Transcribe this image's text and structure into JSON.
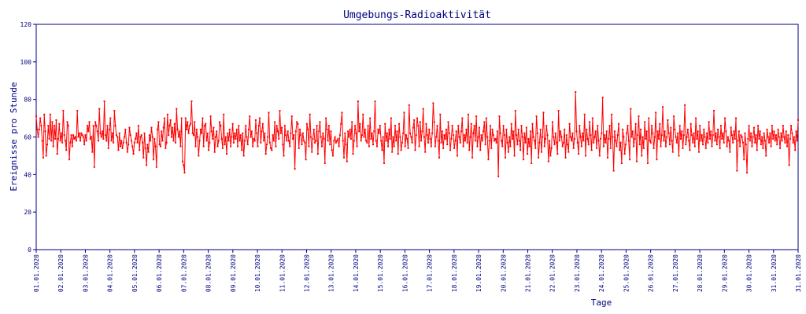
{
  "chart_data": {
    "type": "line",
    "title": "Umgebungs-Radioaktivität",
    "xlabel": "Tage",
    "ylabel": "Ereignisse pro Stunde",
    "ylim": [
      0,
      120
    ],
    "yticks": [
      "0",
      "20",
      "40",
      "60",
      "80",
      "100",
      "120"
    ],
    "xticks": [
      "01.01.2020",
      "02.01.2020",
      "03.01.2020",
      "04.01.2020",
      "05.01.2020",
      "06.01.2020",
      "07.01.2020",
      "08.01.2020",
      "09.01.2020",
      "10.01.2020",
      "11.01.2020",
      "12.01.2020",
      "13.01.2020",
      "14.01.2020",
      "15.01.2020",
      "16.01.2020",
      "17.01.2020",
      "18.01.2020",
      "19.01.2020",
      "20.01.2020",
      "21.01.2020",
      "22.01.2020",
      "23.01.2020",
      "24.01.2020",
      "25.01.2020",
      "26.01.2020",
      "27.01.2020",
      "28.01.2020",
      "29.01.2020",
      "30.01.2020",
      "31.01.2020",
      "31.01.2020"
    ],
    "grid": false,
    "colors": {
      "series": "#ff0000",
      "axes": "#000080",
      "text": "#000080"
    },
    "series": [
      {
        "values": [
          71,
          64,
          60,
          64,
          70,
          66,
          58,
          49,
          72,
          63,
          50,
          56,
          66,
          59,
          72,
          58,
          68,
          55,
          66,
          59,
          69,
          51,
          59,
          67,
          58,
          62,
          57,
          74,
          61,
          58,
          53,
          68,
          66,
          48,
          57,
          61,
          55,
          61,
          59,
          60,
          58,
          74,
          60,
          62,
          58,
          62,
          61,
          60,
          56,
          61,
          58,
          66,
          63,
          68,
          59,
          60,
          52,
          66,
          44,
          68,
          66,
          63,
          58,
          75,
          62,
          60,
          63,
          59,
          79,
          61,
          58,
          66,
          54,
          64,
          70,
          58,
          62,
          57,
          74,
          66,
          61,
          60,
          53,
          62,
          55,
          58,
          54,
          57,
          60,
          64,
          57,
          52,
          56,
          65,
          61,
          58,
          55,
          51,
          57,
          59,
          62,
          57,
          66,
          53,
          60,
          61,
          57,
          49,
          62,
          54,
          45,
          56,
          52,
          61,
          58,
          65,
          60,
          48,
          59,
          55,
          44,
          64,
          68,
          56,
          55,
          63,
          58,
          65,
          70,
          54,
          57,
          72,
          61,
          66,
          69,
          60,
          65,
          58,
          67,
          57,
          75,
          64,
          60,
          63,
          55,
          70,
          47,
          45,
          41,
          70,
          64,
          68,
          62,
          66,
          67,
          79,
          62,
          61,
          68,
          55,
          64,
          60,
          50,
          58,
          64,
          62,
          70,
          55,
          66,
          67,
          58,
          62,
          53,
          57,
          71,
          63,
          59,
          65,
          52,
          60,
          63,
          55,
          58,
          68,
          66,
          59,
          54,
          72,
          56,
          60,
          51,
          62,
          58,
          64,
          55,
          60,
          67,
          57,
          62,
          59,
          64,
          55,
          66,
          58,
          61,
          53,
          62,
          50,
          58,
          66,
          60,
          56,
          64,
          71,
          60,
          63,
          55,
          59,
          58,
          69,
          62,
          55,
          66,
          70,
          57,
          63,
          67,
          58,
          62,
          51,
          56,
          60,
          73,
          57,
          54,
          53,
          61,
          58,
          68,
          55,
          66,
          63,
          59,
          74,
          62,
          65,
          56,
          50,
          66,
          61,
          58,
          63,
          58,
          55,
          62,
          71,
          59,
          61,
          43,
          63,
          68,
          67,
          54,
          64,
          61,
          56,
          62,
          58,
          57,
          48,
          67,
          64,
          55,
          72,
          60,
          52,
          59,
          64,
          57,
          58,
          66,
          51,
          63,
          68,
          60,
          55,
          62,
          59,
          46,
          70,
          64,
          58,
          66,
          56,
          63,
          53,
          50,
          58,
          60,
          57,
          58,
          59,
          55,
          61,
          67,
          73,
          58,
          49,
          62,
          56,
          47,
          63,
          60,
          64,
          59,
          68,
          51,
          58,
          66,
          62,
          55,
          79,
          63,
          67,
          58,
          61,
          72,
          60,
          64,
          58,
          57,
          66,
          55,
          70,
          59,
          62,
          56,
          63,
          79,
          58,
          55,
          64,
          62,
          66,
          58,
          53,
          60,
          46,
          67,
          58,
          62,
          55,
          64,
          59,
          70,
          52,
          60,
          55,
          66,
          58,
          63,
          51,
          67,
          60,
          53,
          57,
          62,
          73,
          55,
          61,
          59,
          54,
          77,
          62,
          60,
          57,
          65,
          69,
          53,
          61,
          70,
          66,
          55,
          68,
          58,
          63,
          75,
          60,
          52,
          67,
          61,
          57,
          64,
          59,
          55,
          62,
          78,
          68,
          55,
          60,
          66,
          58,
          49,
          72,
          57,
          63,
          54,
          61,
          59,
          64,
          56,
          68,
          62,
          53,
          59,
          66,
          61,
          54,
          58,
          63,
          50,
          66,
          60,
          57,
          63,
          70,
          55,
          61,
          58,
          64,
          57,
          72,
          53,
          60,
          67,
          49,
          62,
          66,
          58,
          71,
          55,
          60,
          65,
          53,
          61,
          58,
          63,
          68,
          56,
          70,
          60,
          48,
          58,
          66,
          54,
          64,
          61,
          58,
          59,
          57,
          63,
          39,
          71,
          62,
          58,
          55,
          66,
          61,
          49,
          64,
          57,
          52,
          60,
          55,
          67,
          59,
          63,
          50,
          74,
          61,
          56,
          64,
          58,
          53,
          66,
          60,
          48,
          62,
          57,
          65,
          51,
          59,
          55,
          63,
          46,
          67,
          60,
          58,
          54,
          71,
          62,
          49,
          57,
          64,
          52,
          60,
          73,
          55,
          59,
          66,
          61,
          47,
          58,
          50,
          54,
          68,
          60,
          56,
          62,
          57,
          51,
          74,
          58,
          63,
          60,
          55,
          57,
          64,
          49,
          61,
          56,
          52,
          67,
          60,
          58,
          62,
          54,
          59,
          84,
          63,
          57,
          51,
          66,
          60,
          55,
          62,
          58,
          72,
          50,
          64,
          59,
          56,
          68,
          61,
          53,
          70,
          57,
          60,
          63,
          54,
          66,
          58,
          50,
          59,
          62,
          81,
          55,
          61,
          57,
          63,
          49,
          59,
          66,
          54,
          72,
          60,
          42,
          63,
          58,
          55,
          61,
          67,
          53,
          57,
          46,
          64,
          60,
          51,
          56,
          62,
          66,
          58,
          48,
          75,
          60,
          63,
          55,
          59,
          67,
          47,
          61,
          71,
          56,
          64,
          50,
          60,
          54,
          68,
          59,
          63,
          46,
          70,
          58,
          57,
          66,
          62,
          54,
          60,
          73,
          48,
          63,
          59,
          67,
          55,
          61,
          76,
          58,
          63,
          55,
          60,
          69,
          62,
          56,
          65,
          58,
          52,
          71,
          64,
          60,
          57,
          62,
          50,
          66,
          59,
          63,
          54,
          61,
          77,
          56,
          60,
          64,
          58,
          53,
          67,
          61,
          57,
          62,
          55,
          70,
          59,
          63,
          52,
          66,
          58,
          61,
          56,
          64,
          60,
          54,
          62,
          57,
          68,
          59,
          63,
          55,
          61,
          74,
          58,
          62,
          56,
          64,
          60,
          54,
          66,
          59,
          62,
          57,
          70,
          63,
          55,
          60,
          58,
          52,
          65,
          61,
          57,
          63,
          59,
          70,
          42,
          58,
          63,
          55,
          61,
          60,
          57,
          48,
          62,
          56,
          41,
          59,
          66,
          58,
          62,
          55,
          60,
          65,
          57,
          61,
          53,
          66,
          59,
          63,
          56,
          60,
          54,
          62,
          58,
          50,
          64,
          60,
          57,
          62,
          55,
          66,
          59,
          63,
          58,
          61,
          56,
          64,
          60,
          54,
          62,
          58,
          66,
          60,
          57,
          63,
          55,
          61,
          45,
          59,
          66,
          62,
          57,
          60,
          53,
          63,
          58,
          69
        ]
      }
    ]
  }
}
